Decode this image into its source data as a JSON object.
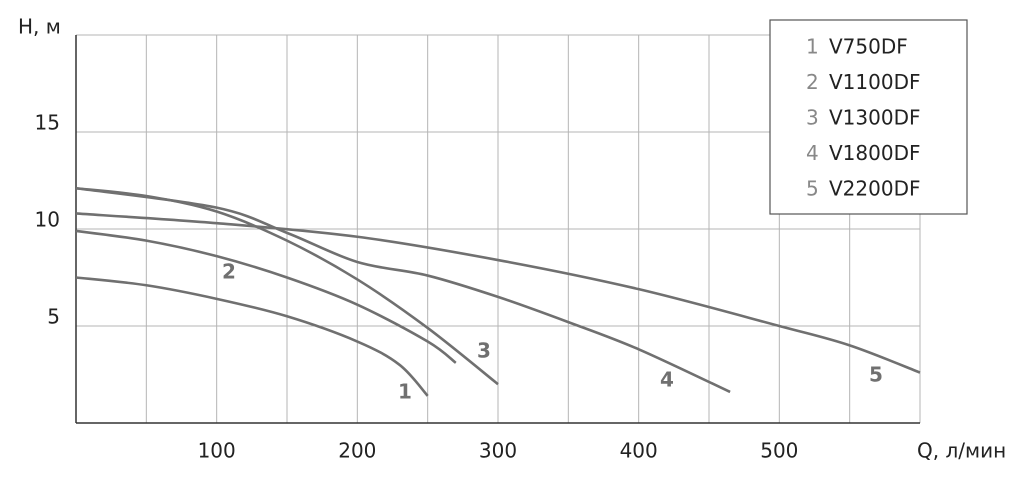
{
  "chart_data": {
    "type": "line",
    "y_label": "H, м",
    "x_label": "Q, л/мин",
    "xlim": [
      0,
      600
    ],
    "ylim": [
      0,
      20
    ],
    "xticks": [
      100,
      200,
      300,
      400,
      500
    ],
    "x_minor_ticks": [
      50,
      150,
      250,
      350,
      450,
      550
    ],
    "yticks": [
      5,
      10,
      15
    ],
    "grid": true,
    "series": [
      {
        "label": "1",
        "name": "V750DF",
        "color": "#707070",
        "x": [
          0,
          50,
          100,
          150,
          200,
          230,
          250
        ],
        "y": [
          7.5,
          7.1,
          6.4,
          5.5,
          4.2,
          3.0,
          1.4
        ]
      },
      {
        "label": "2",
        "name": "V1100DF",
        "color": "#707070",
        "x": [
          0,
          50,
          100,
          150,
          200,
          250,
          270
        ],
        "y": [
          9.9,
          9.4,
          8.6,
          7.5,
          6.1,
          4.2,
          3.1
        ]
      },
      {
        "label": "3",
        "name": "V1300DF",
        "color": "#707070",
        "x": [
          0,
          50,
          100,
          150,
          200,
          250,
          300
        ],
        "y": [
          12.1,
          11.7,
          10.9,
          9.4,
          7.4,
          4.9,
          2.0
        ]
      },
      {
        "label": "4",
        "name": "V1800DF",
        "color": "#707070",
        "x": [
          0,
          100,
          150,
          200,
          250,
          300,
          350,
          400,
          465
        ],
        "y": [
          12.1,
          11.1,
          9.8,
          8.3,
          7.6,
          6.5,
          5.2,
          3.8,
          1.6
        ]
      },
      {
        "label": "5",
        "name": "V2200DF",
        "color": "#707070",
        "x": [
          0,
          100,
          200,
          300,
          400,
          500,
          550,
          600
        ],
        "y": [
          10.8,
          10.3,
          9.6,
          8.4,
          6.9,
          5.0,
          4.0,
          2.6
        ]
      }
    ]
  }
}
